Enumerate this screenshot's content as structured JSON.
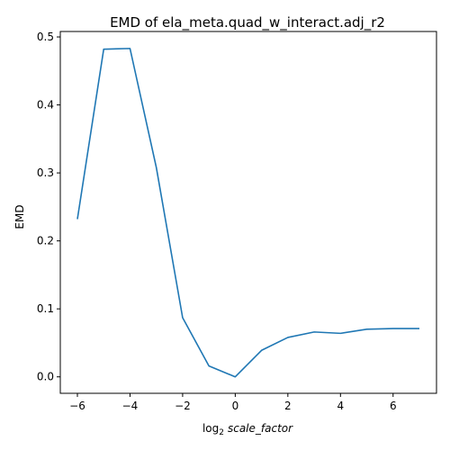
{
  "chart_data": {
    "type": "line",
    "title": "EMD of ela_meta.quad_w_interact.adj_r2",
    "xlabel_base": "log",
    "xlabel_sub": "2",
    "xlabel_var": "scale_factor",
    "ylabel": "EMD",
    "xlim": [
      -6.65,
      7.65
    ],
    "ylim": [
      -0.0242,
      0.508
    ],
    "xticks": [
      -6,
      -4,
      -2,
      0,
      2,
      4,
      6
    ],
    "xtick_labels": [
      "−6",
      "−4",
      "−2",
      "0",
      "2",
      "4",
      "6"
    ],
    "yticks": [
      0.0,
      0.1,
      0.2,
      0.3,
      0.4,
      0.5
    ],
    "ytick_labels": [
      "0.0",
      "0.1",
      "0.2",
      "0.3",
      "0.4",
      "0.5"
    ],
    "grid": false,
    "series": [
      {
        "color": "#1f77b4",
        "x": [
          -6,
          -5,
          -4,
          -3,
          -2,
          -1,
          0,
          1,
          2,
          3,
          4,
          5,
          6,
          7
        ],
        "y": [
          0.232,
          0.482,
          0.483,
          0.308,
          0.087,
          0.016,
          0.0,
          0.039,
          0.058,
          0.066,
          0.064,
          0.07,
          0.071,
          0.071
        ]
      }
    ]
  }
}
